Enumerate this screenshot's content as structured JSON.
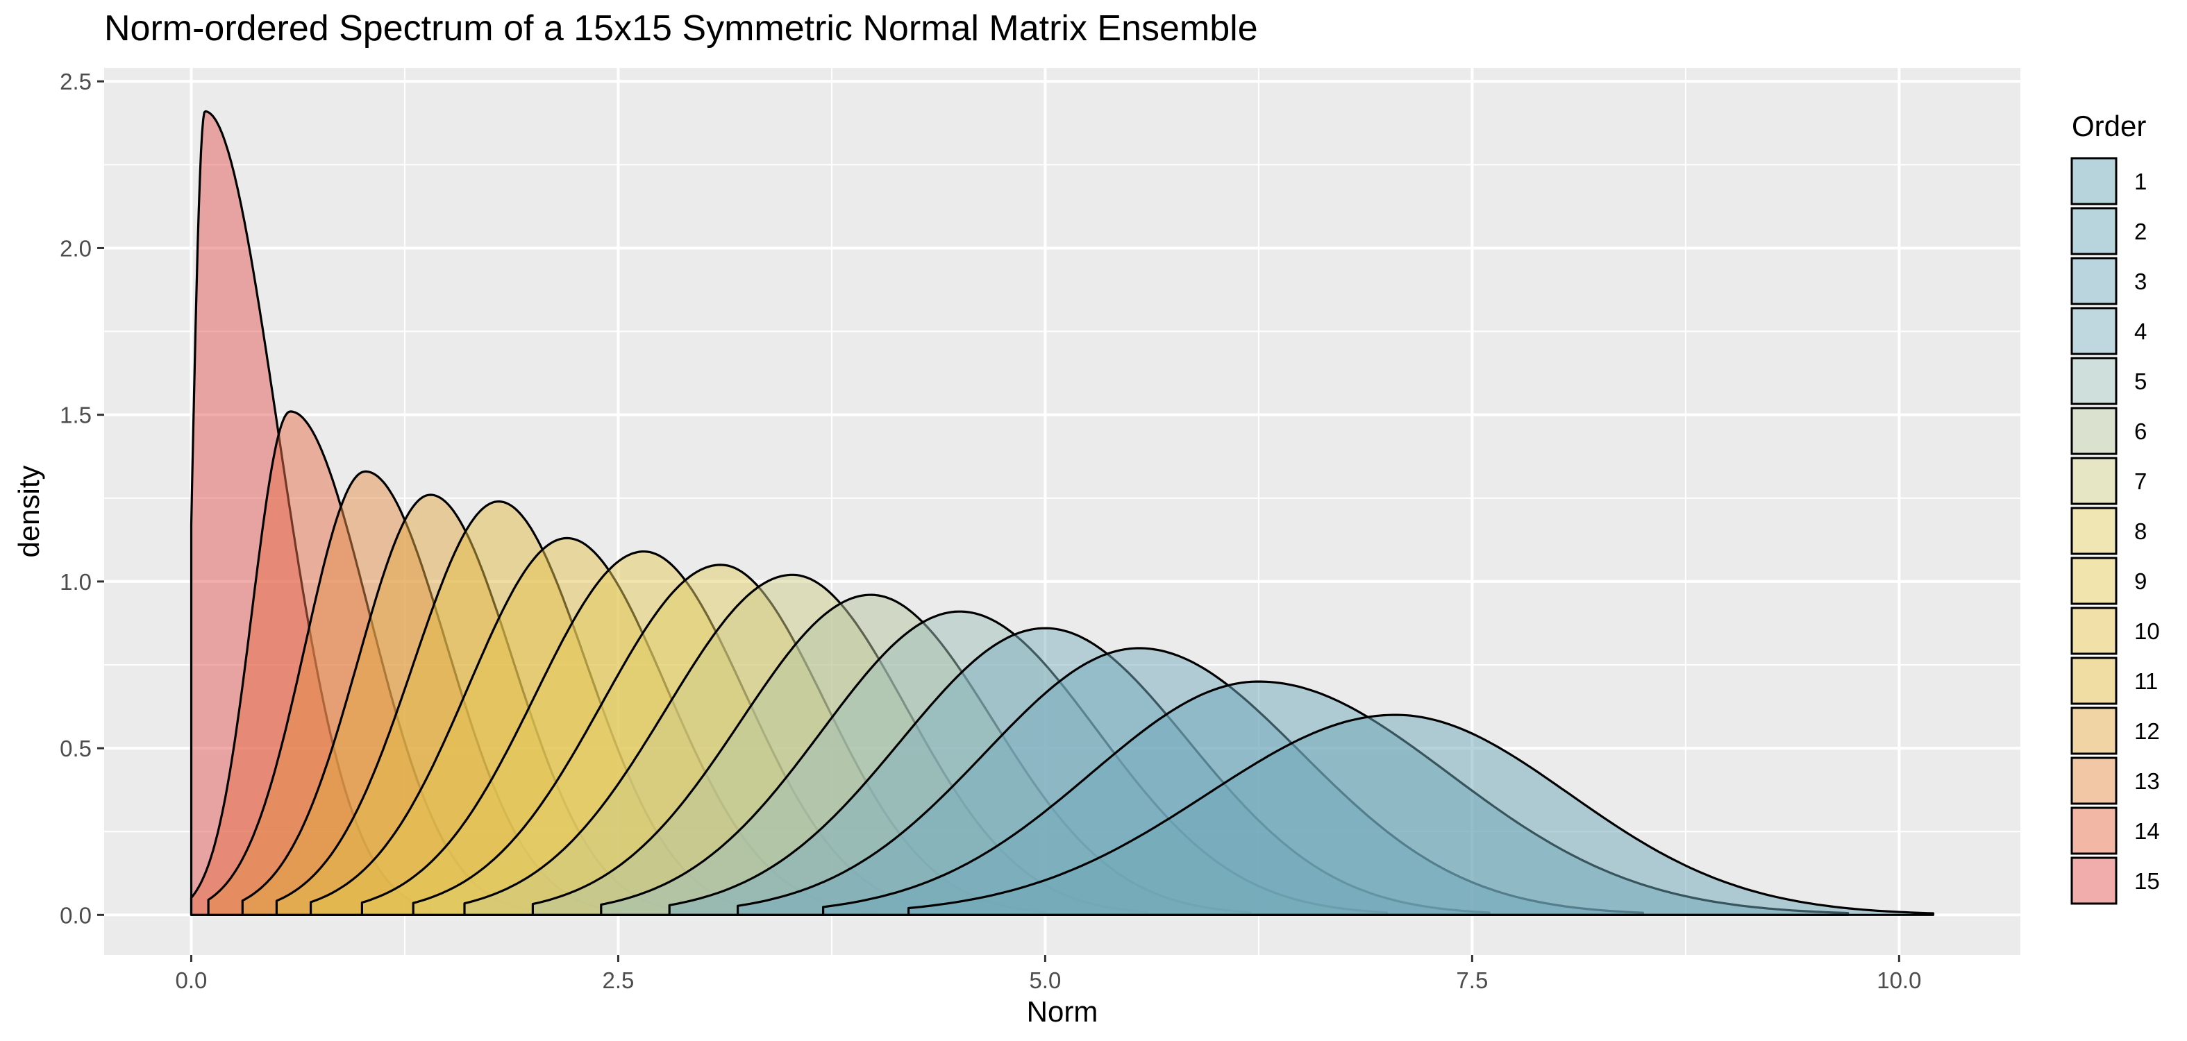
{
  "chart_data": {
    "type": "area",
    "subtype": "overlapping-density",
    "title": "Norm-ordered Spectrum of a 15x15 Symmetric Normal Matrix Ensemble",
    "xlabel": "Norm",
    "ylabel": "density",
    "xlim": [
      -0.51,
      10.71
    ],
    "ylim": [
      -0.12,
      2.54
    ],
    "x_ticks": [
      0.0,
      2.5,
      5.0,
      7.5,
      10.0
    ],
    "x_tick_labels": [
      "0.0",
      "2.5",
      "5.0",
      "7.5",
      "10.0"
    ],
    "y_ticks": [
      0.0,
      0.5,
      1.0,
      1.5,
      2.0,
      2.5
    ],
    "y_tick_labels": [
      "0.0",
      "0.5",
      "1.0",
      "1.5",
      "2.0",
      "2.5"
    ],
    "grid": true,
    "panel_background": "#ebebeb",
    "grid_color": "#ffffff",
    "fill_opacity": 0.5,
    "legend": {
      "title": "Order",
      "position": "right"
    },
    "series": [
      {
        "name": "1",
        "color": "#6fa8b8",
        "peak_x": 7.05,
        "peak_density": 0.6,
        "support": [
          4.2,
          10.2
        ]
      },
      {
        "name": "2",
        "color": "#72aabc",
        "peak_x": 6.25,
        "peak_density": 0.7,
        "support": [
          3.7,
          9.7
        ]
      },
      {
        "name": "3",
        "color": "#76acbe",
        "peak_x": 5.55,
        "peak_density": 0.8,
        "support": [
          3.2,
          8.5
        ]
      },
      {
        "name": "4",
        "color": "#7fb0c0",
        "peak_x": 5.0,
        "peak_density": 0.86,
        "support": [
          2.8,
          7.6
        ]
      },
      {
        "name": "5",
        "color": "#9ebfb9",
        "peak_x": 4.5,
        "peak_density": 0.91,
        "support": [
          2.4,
          7.0
        ]
      },
      {
        "name": "6",
        "color": "#b6c6a0",
        "peak_x": 3.98,
        "peak_density": 0.96,
        "support": [
          2.0,
          6.2
        ]
      },
      {
        "name": "7",
        "color": "#cdcc89",
        "peak_x": 3.52,
        "peak_density": 1.02,
        "support": [
          1.6,
          5.6
        ]
      },
      {
        "name": "8",
        "color": "#e1ce6a",
        "peak_x": 3.1,
        "peak_density": 1.05,
        "support": [
          1.3,
          5.0
        ]
      },
      {
        "name": "9",
        "color": "#e3c95b",
        "peak_x": 2.65,
        "peak_density": 1.09,
        "support": [
          1.0,
          4.5
        ]
      },
      {
        "name": "10",
        "color": "#e4c352",
        "peak_x": 2.2,
        "peak_density": 1.13,
        "support": [
          0.7,
          4.0
        ]
      },
      {
        "name": "11",
        "color": "#e2bc4a",
        "peak_x": 1.8,
        "peak_density": 1.24,
        "support": [
          0.5,
          3.4
        ]
      },
      {
        "name": "12",
        "color": "#e1aa47",
        "peak_x": 1.4,
        "peak_density": 1.26,
        "support": [
          0.3,
          2.9
        ]
      },
      {
        "name": "13",
        "color": "#e48f4c",
        "peak_x": 1.02,
        "peak_density": 1.33,
        "support": [
          0.1,
          2.5
        ]
      },
      {
        "name": "14",
        "color": "#e8704e",
        "peak_x": 0.58,
        "peak_density": 1.51,
        "support": [
          0.0,
          2.0
        ]
      },
      {
        "name": "15",
        "color": "#e45c57",
        "peak_x": 0.08,
        "peak_density": 2.41,
        "support": [
          0.0,
          1.4
        ],
        "density_at_zero": 1.17
      }
    ]
  }
}
